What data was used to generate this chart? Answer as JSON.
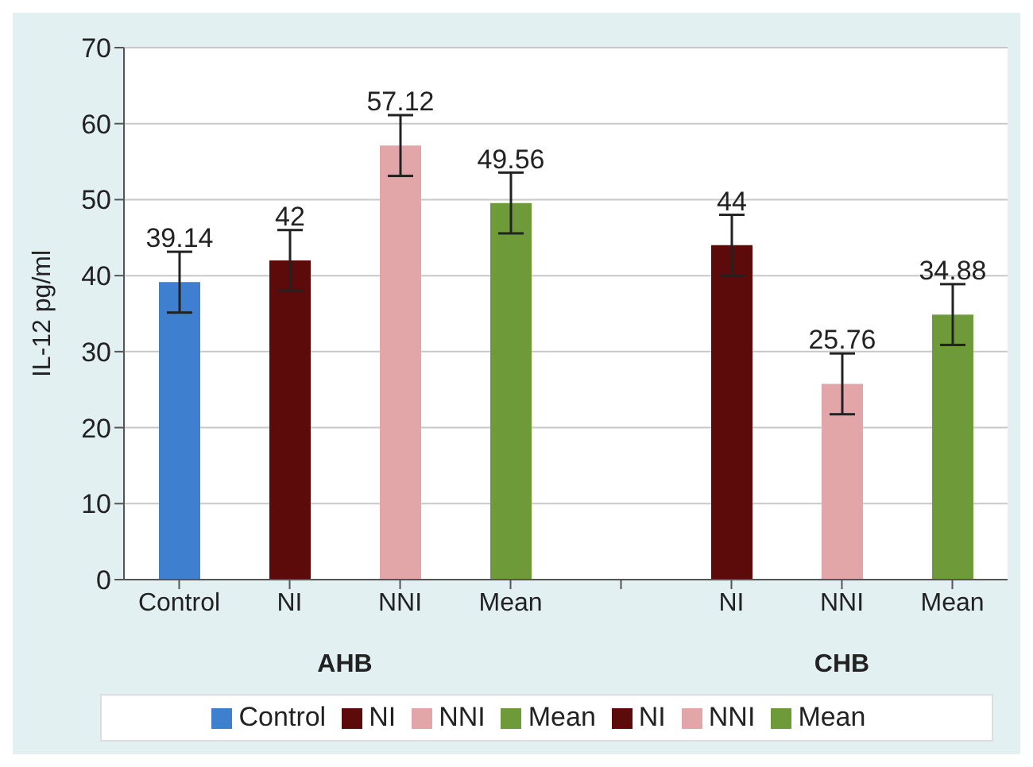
{
  "chart_data": {
    "type": "bar",
    "ylabel": "IL-12 pg/ml",
    "categories": [
      "Control",
      "NI",
      "NNI",
      "Mean",
      null,
      "NI",
      "NNI",
      "Mean"
    ],
    "series": [
      {
        "name": "Control",
        "color": "#3f7fcf",
        "values": [
          39.14,
          null,
          null,
          null,
          null,
          null,
          null,
          null
        ],
        "errors": [
          4,
          null,
          null,
          null,
          null,
          null,
          null,
          null
        ]
      },
      {
        "name": "NI",
        "color": "#5c0a0a",
        "values": [
          null,
          42,
          null,
          null,
          null,
          null,
          null,
          null
        ],
        "errors": [
          null,
          4,
          null,
          null,
          null,
          null,
          null,
          null
        ]
      },
      {
        "name": "NNI",
        "color": "#e3a6a8",
        "values": [
          null,
          null,
          57.12,
          null,
          null,
          null,
          null,
          null
        ],
        "errors": [
          null,
          null,
          4,
          null,
          null,
          null,
          null,
          null
        ]
      },
      {
        "name": "Mean",
        "color": "#6e9a3a",
        "values": [
          null,
          null,
          null,
          49.56,
          null,
          null,
          null,
          null
        ],
        "errors": [
          null,
          null,
          null,
          4,
          null,
          null,
          null,
          null
        ]
      },
      {
        "name": "NI",
        "color": "#5c0a0a",
        "values": [
          null,
          null,
          null,
          null,
          null,
          44,
          null,
          null
        ],
        "errors": [
          null,
          null,
          null,
          null,
          null,
          4,
          null,
          null
        ]
      },
      {
        "name": "NNI",
        "color": "#e3a6a8",
        "values": [
          null,
          null,
          null,
          null,
          null,
          null,
          25.76,
          null
        ],
        "errors": [
          null,
          null,
          null,
          null,
          null,
          null,
          4,
          null
        ]
      },
      {
        "name": "Mean",
        "color": "#6e9a3a",
        "values": [
          null,
          null,
          null,
          null,
          null,
          null,
          null,
          34.88
        ],
        "errors": [
          null,
          null,
          null,
          null,
          null,
          null,
          null,
          4
        ]
      }
    ],
    "annotations": [
      "AHB",
      "CHB"
    ],
    "ylim": [
      0,
      70
    ],
    "yticks": [
      0,
      10,
      20,
      30,
      40,
      50,
      60,
      70
    ],
    "grid": "y",
    "legend": "bottom",
    "data_labels": true
  }
}
